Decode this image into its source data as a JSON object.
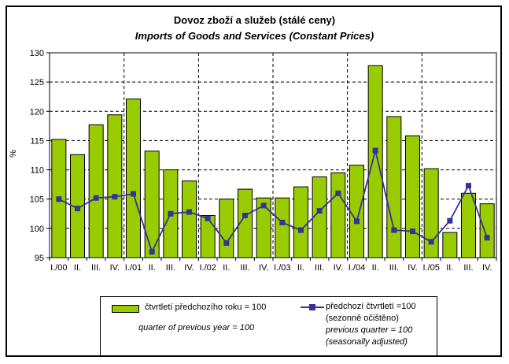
{
  "chart_data": {
    "type": "bar",
    "title": "Dovoz zboží a služeb (stálé ceny)",
    "subtitle": "Imports of Goods and Services (Constant Prices)",
    "ylabel": "%",
    "xlabel": "",
    "ylim": [
      95,
      130
    ],
    "y_ticks": [
      95,
      100,
      105,
      110,
      115,
      120,
      125,
      130
    ],
    "grid": "horizontal dashed black lines at each y tick; dashed vertical separators between years",
    "year_separators_after_index": [
      3,
      7,
      11,
      15,
      19
    ],
    "legend_position": "bottom",
    "categories": [
      "I./00",
      "II.",
      "III.",
      "IV.",
      "I./01",
      "II.",
      "III.",
      "IV.",
      "I./02",
      "II.",
      "III.",
      "IV.",
      "I./03",
      "II.",
      "III.",
      "IV.",
      "I./04",
      "II.",
      "III.",
      "IV.",
      "I./05",
      "II.",
      "III.",
      "IV."
    ],
    "series": [
      {
        "name": "čtvrtletí předchozího roku = 100 (quarter of previous year = 100)",
        "type": "bar",
        "color": "#99CC00",
        "values": [
          115.2,
          112.6,
          117.7,
          119.4,
          122.1,
          113.2,
          110.0,
          108.1,
          102.2,
          105.0,
          106.7,
          105.2,
          105.2,
          107.1,
          108.8,
          109.5,
          110.8,
          127.8,
          119.1,
          115.8,
          110.2,
          99.3,
          106.0,
          104.2
        ]
      },
      {
        "name": "předchozí čtvrtletí =100 (sezonně očištěno) / previous quarter = 100 (seasonally adjusted)",
        "type": "line",
        "color": "#333399",
        "values": [
          105.0,
          103.4,
          105.2,
          105.4,
          105.9,
          96.0,
          102.5,
          102.8,
          101.7,
          97.5,
          102.2,
          103.9,
          101.0,
          99.7,
          103.0,
          106.0,
          101.2,
          113.3,
          99.7,
          99.5,
          97.7,
          101.3,
          107.3,
          98.4
        ]
      }
    ]
  },
  "legend": {
    "bar_label_cz": "čtvrtletí předchozího roku = 100",
    "bar_label_en": "quarter of previous year = 100",
    "line_label_cz_1": "předchozí čtvrtletí =100",
    "line_label_cz_2": "(sezonně očištěno)",
    "line_label_en_1": "previous quarter = 100",
    "line_label_en_2": "(seasonally adjusted)"
  },
  "colors": {
    "bar_fill": "#99CC00",
    "bar_stroke": "#000000",
    "line": "#333399",
    "grid": "#000000",
    "background": "#FFFFFF"
  }
}
